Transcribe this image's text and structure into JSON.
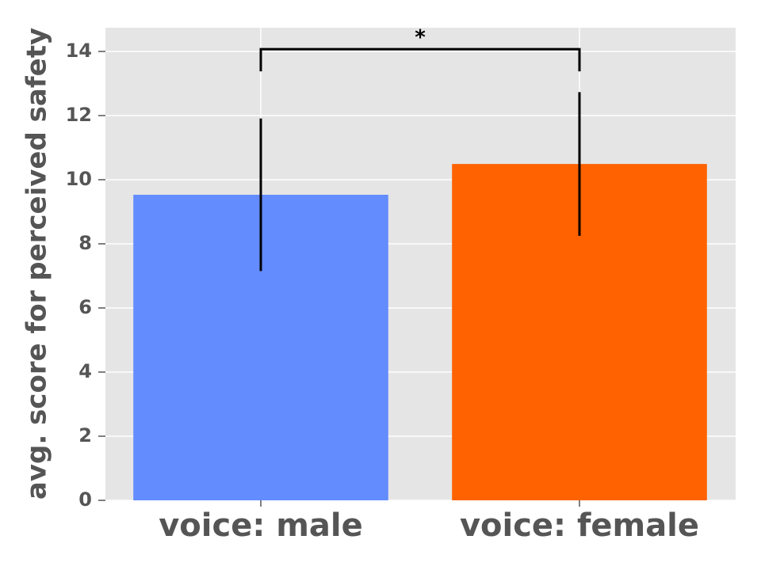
{
  "chart_data": {
    "type": "bar",
    "y_label": "avg. score for perceived safety",
    "categories": [
      "voice: male",
      "voice: female"
    ],
    "values": [
      9.53,
      10.49
    ],
    "errors": [
      2.38,
      2.24
    ],
    "colors": [
      "#638cff",
      "#ff6200"
    ],
    "ylim": [
      0,
      14.74
    ],
    "yticks": [
      0,
      2,
      4,
      6,
      8,
      10,
      12,
      14
    ],
    "grid": true,
    "annotations": [
      {
        "text": "*",
        "y": 14.07,
        "tip": 13.38
      }
    ]
  }
}
